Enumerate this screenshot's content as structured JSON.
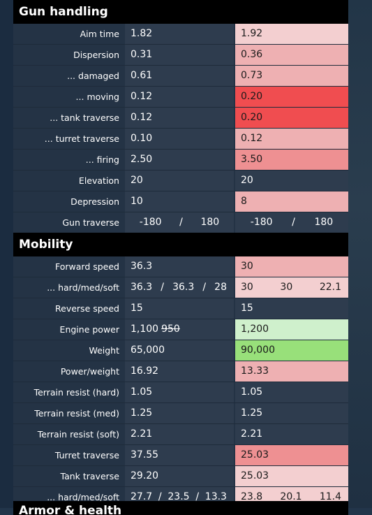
{
  "colors": {
    "neutral": "#2e3c4e",
    "light_red": "#f3cfd0",
    "mid_red": "#eeb0b2",
    "strong_red": "#ee9092",
    "bright_red": "#f04d50",
    "light_green": "#cff0cc",
    "bright_green": "#98e07a"
  },
  "sections": [
    {
      "title": "Gun handling",
      "rows": [
        {
          "label": "Aim time",
          "v1": "1.82",
          "v2": "1.92",
          "tint": "light_red"
        },
        {
          "label": "Dispersion",
          "v1": "0.31",
          "v2": "0.36",
          "tint": "mid_red"
        },
        {
          "label": "... damaged",
          "v1": "0.61",
          "v2": "0.73",
          "tint": "mid_red"
        },
        {
          "label": "... moving",
          "v1": "0.12",
          "v2": "0.20",
          "tint": "bright_red"
        },
        {
          "label": "... tank traverse",
          "v1": "0.12",
          "v2": "0.20",
          "tint": "bright_red"
        },
        {
          "label": "... turret traverse",
          "v1": "0.10",
          "v2": "0.12",
          "tint": "mid_red"
        },
        {
          "label": "... firing",
          "v1": "2.50",
          "v2": "3.50",
          "tint": "strong_red"
        },
        {
          "label": "Elevation",
          "v1": "20",
          "v2": "20",
          "tint": "neutral"
        },
        {
          "label": "Depression",
          "v1": "10",
          "v2": "8",
          "tint": "mid_red"
        },
        {
          "label": "Gun traverse",
          "v1_parts": [
            "-180",
            "/",
            "180"
          ],
          "v2_parts": [
            "-180",
            "/",
            "180"
          ],
          "tint": "neutral",
          "kind": "traverse"
        }
      ]
    },
    {
      "title": "Mobility",
      "rows": [
        {
          "label": "Forward speed",
          "v1": "36.3",
          "v2": "30",
          "tint": "mid_red"
        },
        {
          "label": "... hard/med/soft",
          "v1_parts": [
            "36.3",
            "/",
            "36.3",
            "/",
            "28"
          ],
          "v2_parts": [
            "30",
            "30",
            "22.1"
          ],
          "tint": "light_red",
          "kind": "hms"
        },
        {
          "label": "Reverse speed",
          "v1": "15",
          "v2": "15",
          "tint": "neutral"
        },
        {
          "label": "Engine power",
          "v1": "1,100",
          "v1_strike": "950",
          "v2": "1,200",
          "tint": "light_green"
        },
        {
          "label": "Weight",
          "v1": "65,000",
          "v2": "90,000",
          "tint": "bright_green"
        },
        {
          "label": "Power/weight",
          "v1": "16.92",
          "v2": "13.33",
          "tint": "mid_red"
        },
        {
          "label": "Terrain resist (hard)",
          "v1": "1.05",
          "v2": "1.05",
          "tint": "neutral"
        },
        {
          "label": "Terrain resist (med)",
          "v1": "1.25",
          "v2": "1.25",
          "tint": "neutral"
        },
        {
          "label": "Terrain resist (soft)",
          "v1": "2.21",
          "v2": "2.21",
          "tint": "neutral"
        },
        {
          "label": "Turret traverse",
          "v1": "37.55",
          "v2": "25.03",
          "tint": "strong_red"
        },
        {
          "label": "Tank traverse",
          "v1": "29.20",
          "v2": "25.03",
          "tint": "light_red"
        },
        {
          "label": "... hard/med/soft",
          "v1_parts": [
            "27.7",
            "/",
            "23.5",
            "/",
            "13.3"
          ],
          "v2_parts": [
            "23.8",
            "20.1",
            "11.4"
          ],
          "tint": "light_red",
          "kind": "hms"
        }
      ]
    }
  ],
  "next_section_title": "Armor & health"
}
